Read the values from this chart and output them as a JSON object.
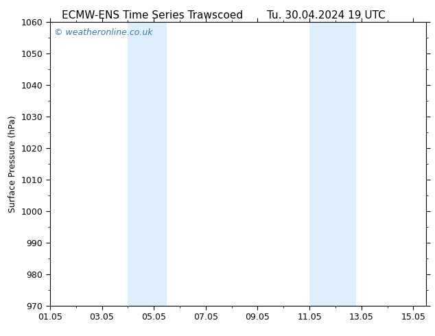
{
  "title_left": "ECMW-ENS Time Series Trawscoed",
  "title_right": "Tu. 30.04.2024 19 UTC",
  "ylabel": "Surface Pressure (hPa)",
  "xlim": [
    1.0,
    15.5
  ],
  "ylim": [
    970,
    1060
  ],
  "yticks": [
    970,
    980,
    990,
    1000,
    1010,
    1020,
    1030,
    1040,
    1050,
    1060
  ],
  "xtick_labels": [
    "01.05",
    "03.05",
    "05.05",
    "07.05",
    "09.05",
    "11.05",
    "13.05",
    "15.05"
  ],
  "xtick_positions": [
    1,
    3,
    5,
    7,
    9,
    11,
    13,
    15
  ],
  "shaded_bands": [
    {
      "x_start": 4.0,
      "x_end": 5.5
    },
    {
      "x_start": 11.0,
      "x_end": 12.8
    }
  ],
  "shade_color": "#ddeeff",
  "background_color": "#ffffff",
  "watermark_text": "© weatheronline.co.uk",
  "watermark_color": "#3377bb",
  "watermark_fontsize": 9,
  "title_fontsize": 11,
  "label_fontsize": 9,
  "tick_fontsize": 9
}
